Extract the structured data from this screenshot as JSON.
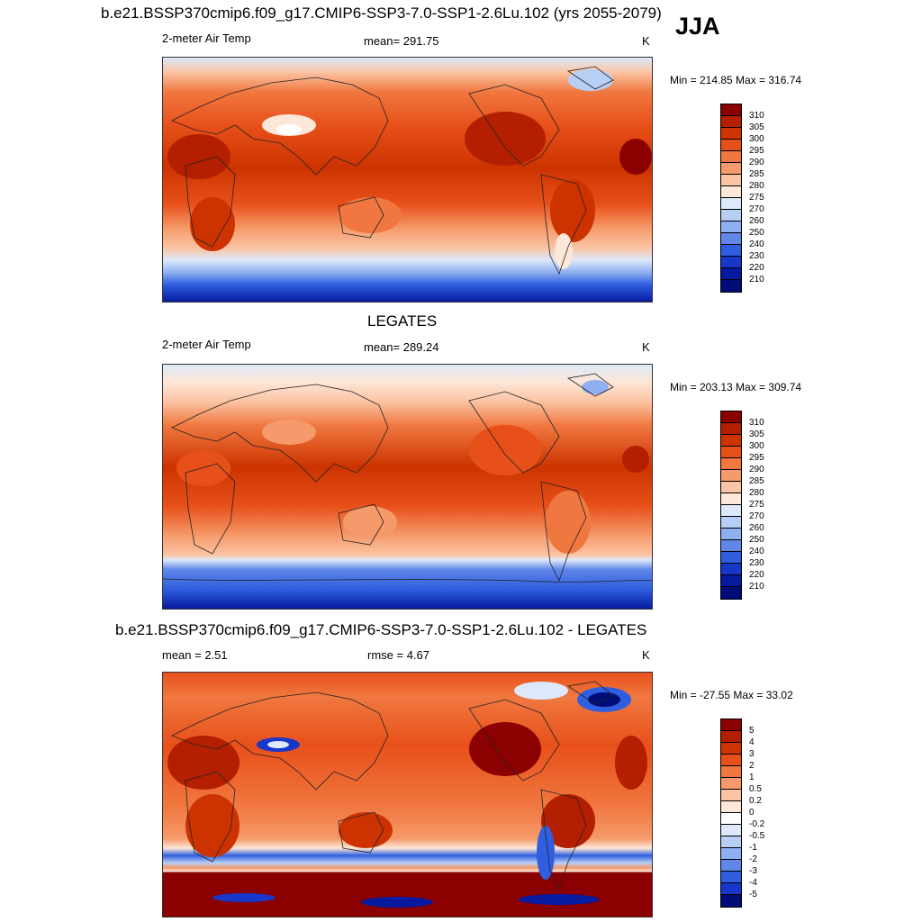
{
  "season": "JJA",
  "panels": [
    {
      "title": "b.e21.BSSP370cmip6.f09_g17.CMIP6-SSP3-7.0-SSP1-2.6Lu.102 (yrs 2055-2079)",
      "variable": "2-meter Air Temp",
      "stat": "mean= 291.75",
      "units": "K",
      "minmax": "Min = 214.85 Max = 316.74",
      "colorbar": {
        "labels": [
          "310",
          "305",
          "300",
          "295",
          "290",
          "285",
          "280",
          "275",
          "270",
          "260",
          "250",
          "240",
          "230",
          "220",
          "210"
        ],
        "colors": [
          "#8b0000",
          "#b31f00",
          "#cc3300",
          "#e8501a",
          "#f07840",
          "#f59a6a",
          "#fbc4a4",
          "#fde7d8",
          "#dde9fa",
          "#b8cff5",
          "#8fb0f0",
          "#5f86e8",
          "#2f5fe0",
          "#1637c8",
          "#061aa0",
          "#000c78"
        ]
      }
    },
    {
      "title": "LEGATES",
      "variable": "2-meter Air Temp",
      "stat": "mean= 289.24",
      "units": "K",
      "minmax": "Min = 203.13 Max = 309.74",
      "colorbar": {
        "labels": [
          "310",
          "305",
          "300",
          "295",
          "290",
          "285",
          "280",
          "275",
          "270",
          "260",
          "250",
          "240",
          "230",
          "220",
          "210"
        ],
        "colors": [
          "#8b0000",
          "#b31f00",
          "#cc3300",
          "#e8501a",
          "#f07840",
          "#f59a6a",
          "#fbc4a4",
          "#fde7d8",
          "#dde9fa",
          "#b8cff5",
          "#8fb0f0",
          "#5f86e8",
          "#2f5fe0",
          "#1637c8",
          "#061aa0",
          "#000c78"
        ]
      }
    },
    {
      "title": "b.e21.BSSP370cmip6.f09_g17.CMIP6-SSP3-7.0-SSP1-2.6Lu.102 - LEGATES",
      "stat_mean": "mean =   2.51",
      "stat_rmse": "rmse =   4.67",
      "units": "K",
      "minmax": "Min = -27.55 Max =  33.02",
      "colorbar": {
        "labels": [
          "5",
          "4",
          "3",
          "2",
          "1",
          "0.5",
          "0.2",
          "0",
          "-0.2",
          "-0.5",
          "-1",
          "-2",
          "-3",
          "-4",
          "-5"
        ],
        "colors": [
          "#8b0000",
          "#b31f00",
          "#cc3300",
          "#e8501a",
          "#f07840",
          "#f59a6a",
          "#fbc4a4",
          "#fde7d8",
          "#ffffff",
          "#dde9fa",
          "#b8cff5",
          "#8fb0f0",
          "#5f86e8",
          "#2f5fe0",
          "#1637c8",
          "#000c78"
        ]
      }
    }
  ]
}
